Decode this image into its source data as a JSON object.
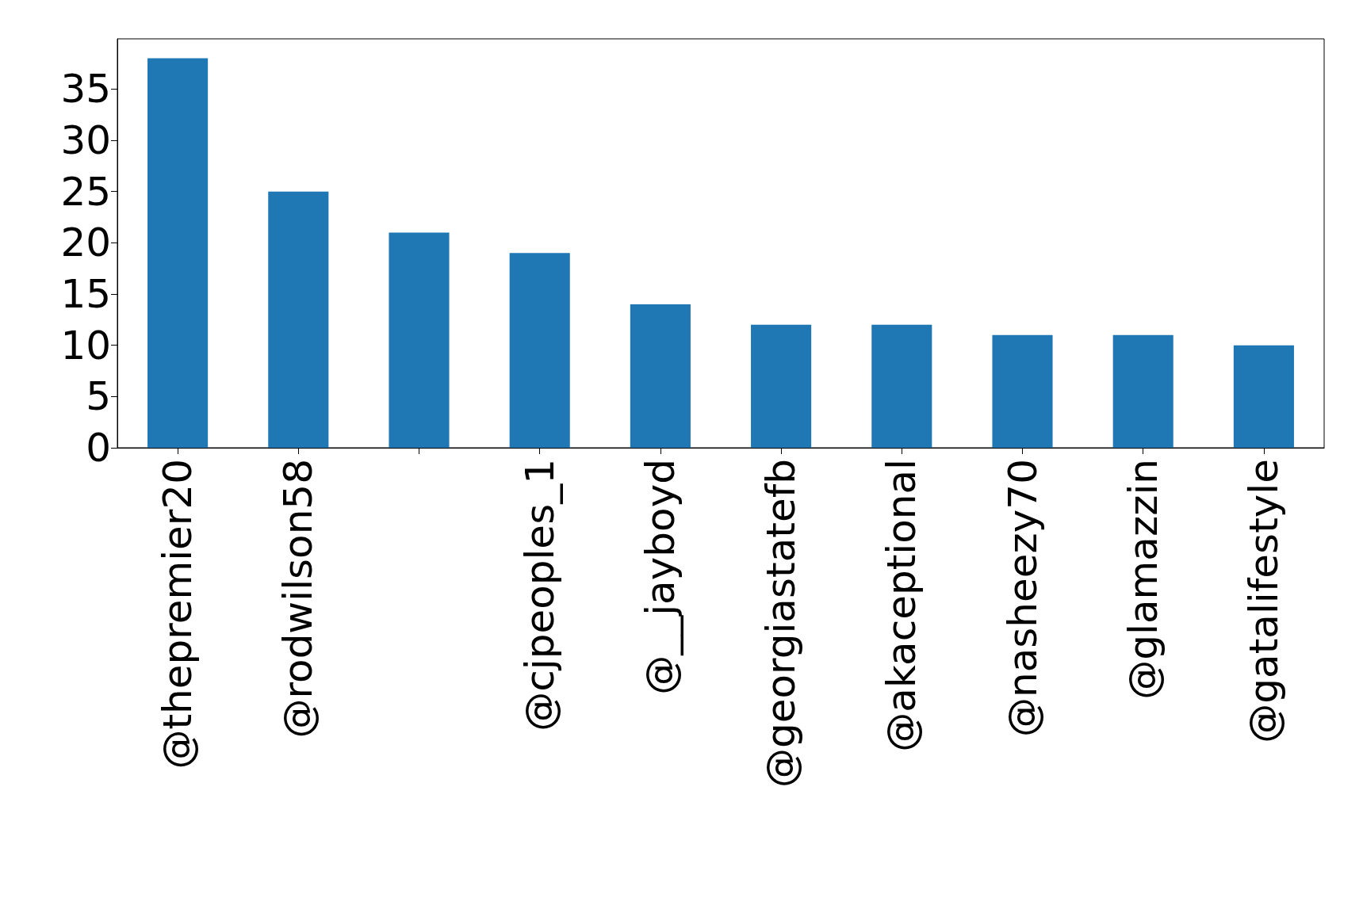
{
  "chart_data": {
    "type": "bar",
    "categories": [
      "@thepremier20",
      "@rodwilson58",
      null,
      "@cjpeoples_1",
      "@__jayboyd",
      "@georgiastatefb",
      "@akaceptional",
      "@nasheezy70",
      "@glamazzin",
      "@gatalifestyle"
    ],
    "values": [
      38,
      25,
      21,
      19,
      14,
      12,
      12,
      11,
      11,
      10
    ],
    "color": "#1f77b4",
    "ylim": [
      0,
      39.9
    ],
    "yticks": [
      0,
      5,
      10,
      15,
      20,
      25,
      30,
      35
    ],
    "grid": false
  }
}
